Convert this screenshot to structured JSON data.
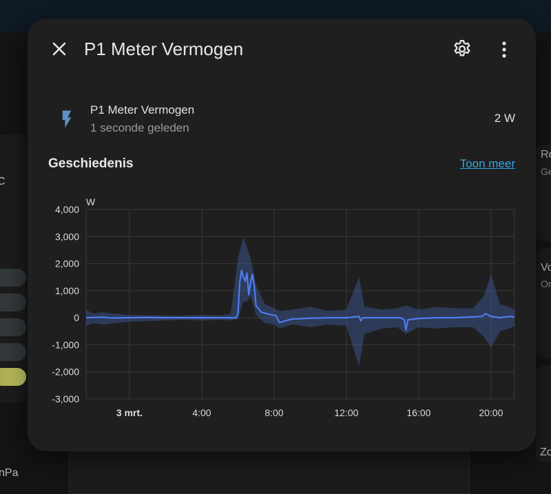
{
  "background": {
    "right_card1_title": "Ro",
    "right_card1_sub": "Ge",
    "right_card2_title": "Vo",
    "right_card2_sub": "Or",
    "left_fragment1": "C",
    "bottom_left_text": "nPa",
    "bottom_right_text": "Zo"
  },
  "dialog": {
    "title": "P1 Meter Vermogen",
    "close_icon": "close-icon",
    "settings_icon": "gear-icon",
    "more_icon": "more-vertical-icon"
  },
  "entity": {
    "icon": "flash-icon",
    "name": "P1 Meter Vermogen",
    "last_changed": "1 seconde geleden",
    "state": "2 W"
  },
  "history": {
    "title": "Geschiedenis",
    "more_link": "Toon meer"
  },
  "colors": {
    "accent": "#34a8e4",
    "line": "#4f7df0",
    "band": "#3e5a9e",
    "dialog_bg": "#1f1f1f"
  },
  "chart_data": {
    "type": "line",
    "unit": "W",
    "ylim": [
      -3000,
      4000
    ],
    "yticks": [
      4000,
      3000,
      2000,
      1000,
      0,
      -1000,
      -2000,
      -3000
    ],
    "ytick_labels": [
      "4,000",
      "3,000",
      "2,000",
      "1,000",
      "0",
      "-1,000",
      "-2,000",
      "-3,000"
    ],
    "xlim": [
      -2.4,
      21.3
    ],
    "xticks": [
      0,
      4,
      8,
      12,
      16,
      20
    ],
    "xtick_labels": [
      "3 mrt.",
      "4:00",
      "8:00",
      "12:00",
      "16:00",
      "20:00"
    ],
    "grid": true,
    "series": [
      {
        "x": [
          -2.4,
          -1.5,
          -1.0,
          0.0,
          1.0,
          2.0,
          3.0,
          4.0,
          5.0,
          5.9,
          6.0,
          6.1,
          6.2,
          6.3,
          6.4,
          6.5,
          6.6,
          6.7,
          6.8,
          6.9,
          7.0,
          7.3,
          7.6,
          7.9,
          8.1,
          8.3,
          9.0,
          10.0,
          11.0,
          12.0,
          12.7,
          12.8,
          12.9,
          13.5,
          14.5,
          15.0,
          15.2,
          15.3,
          15.4,
          16.0,
          17.0,
          18.0,
          19.0,
          19.5,
          19.7,
          20.0,
          20.5,
          21.0,
          21.3
        ],
        "y": [
          0,
          20,
          -10,
          0,
          10,
          0,
          0,
          0,
          0,
          0,
          150,
          1300,
          1750,
          1500,
          1350,
          1650,
          850,
          1300,
          1600,
          1200,
          450,
          200,
          150,
          100,
          80,
          -180,
          -50,
          -20,
          0,
          0,
          50,
          -120,
          0,
          0,
          0,
          0,
          -80,
          -450,
          -80,
          -30,
          0,
          0,
          30,
          50,
          150,
          50,
          0,
          50,
          30
        ]
      }
    ],
    "band": {
      "x": [
        -2.4,
        -2.0,
        -1.5,
        0.0,
        2.0,
        3.0,
        4.0,
        5.0,
        5.6,
        6.0,
        6.3,
        6.5,
        6.7,
        7.0,
        7.5,
        8.0,
        8.3,
        9.0,
        10.0,
        11.0,
        12.0,
        12.7,
        13.0,
        14.0,
        14.8,
        15.3,
        16.0,
        17.0,
        18.0,
        19.0,
        19.6,
        20.0,
        20.5,
        21.0,
        21.3
      ],
      "max": [
        300,
        150,
        200,
        100,
        80,
        80,
        100,
        80,
        150,
        2200,
        3000,
        2600,
        2200,
        1200,
        500,
        350,
        250,
        300,
        400,
        250,
        300,
        1500,
        400,
        300,
        350,
        450,
        300,
        400,
        350,
        350,
        800,
        1600,
        500,
        400,
        300
      ],
      "min": [
        -300,
        -200,
        -250,
        -150,
        -100,
        -80,
        -100,
        -80,
        -100,
        -50,
        600,
        600,
        800,
        100,
        -200,
        -250,
        -400,
        -250,
        -350,
        -250,
        -300,
        -1800,
        -600,
        -400,
        -350,
        -600,
        -350,
        -400,
        -350,
        -350,
        -700,
        -1100,
        -500,
        -400,
        -300
      ]
    }
  }
}
